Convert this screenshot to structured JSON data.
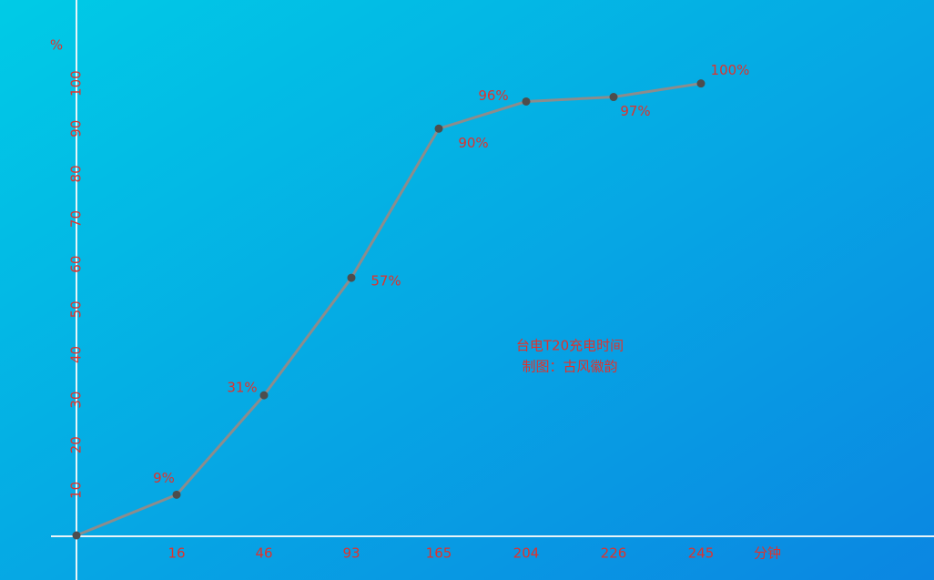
{
  "chart_data": {
    "type": "line",
    "x_label": "分钟",
    "y_label": "%",
    "annotations": [
      "台电T20充电时间",
      "制图：古风徽韵"
    ],
    "categories": [
      null,
      "16",
      "46",
      "93",
      "165",
      "204",
      "226",
      "245"
    ],
    "series": [
      {
        "color": "#8c8c8c",
        "values": [
          0,
          9,
          31,
          57,
          90,
          96,
          97,
          100
        ],
        "value_labels": [
          null,
          "9%",
          "31%",
          "57%",
          "90%",
          "96%",
          "97%",
          "100%"
        ]
      }
    ],
    "ylim": [
      0,
      110
    ],
    "yticks": [
      10,
      20,
      30,
      40,
      50,
      60,
      70,
      80,
      90,
      100
    ]
  }
}
